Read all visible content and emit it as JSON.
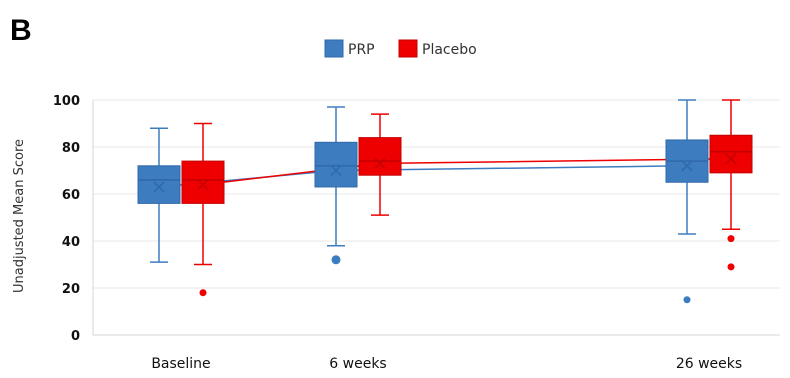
{
  "panel_label": "B",
  "chart_data": {
    "type": "box",
    "title": "",
    "xlabel": "",
    "ylabel": "Unadjusted Mean Score",
    "ylim": [
      0,
      100
    ],
    "yticks": [
      0,
      20,
      40,
      60,
      80,
      100
    ],
    "grid": "horizontal",
    "legend_position": "top-center",
    "categories": [
      "Baseline",
      "6 weeks",
      "26 weeks"
    ],
    "x_positions_weeks": [
      0,
      6,
      26
    ],
    "series": [
      {
        "name": "PRP",
        "color": "#3e7cc0",
        "edge": "#2f6aa8",
        "boxes": [
          {
            "min": 31,
            "q1": 56,
            "median": 66,
            "q3": 72,
            "max": 88,
            "mean": 63,
            "outliers": []
          },
          {
            "min": 38,
            "q1": 63,
            "median": 72,
            "q3": 82,
            "max": 97,
            "mean": 70,
            "outliers": [
              32
            ]
          },
          {
            "min": 43,
            "q1": 65,
            "median": 74,
            "q3": 83,
            "max": 100,
            "mean": 72,
            "outliers": [
              15
            ]
          }
        ]
      },
      {
        "name": "Placebo",
        "color": "#ee0000",
        "edge": "#c40000",
        "boxes": [
          {
            "min": 30,
            "q1": 56,
            "median": 66,
            "q3": 74,
            "max": 90,
            "mean": 64,
            "outliers": [
              18
            ]
          },
          {
            "min": 51,
            "q1": 68,
            "median": 74,
            "q3": 84,
            "max": 94,
            "mean": 73,
            "outliers": []
          },
          {
            "min": 45,
            "q1": 69,
            "median": 78,
            "q3": 85,
            "max": 100,
            "mean": 75,
            "outliers": [
              41,
              29
            ]
          }
        ]
      }
    ]
  }
}
